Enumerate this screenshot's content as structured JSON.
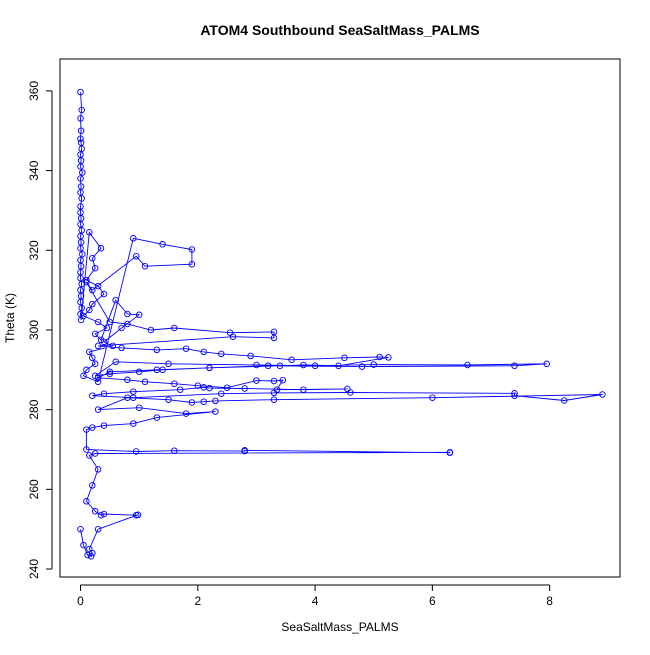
{
  "chart_data": {
    "type": "scatter",
    "title": "ATOM4 Southbound SeaSaltMass_PALMS",
    "xlabel": "SeaSaltMass_PALMS",
    "ylabel": "Theta (K)",
    "xlim": [
      -0.35,
      9.2
    ],
    "ylim": [
      238,
      368
    ],
    "x_ticks": [
      0,
      2,
      4,
      6,
      8
    ],
    "y_ticks": [
      240,
      260,
      280,
      300,
      320,
      340,
      360
    ],
    "grid": false,
    "legend": "none",
    "color": "#0000ff",
    "marker": "open-circle",
    "connected_by_lines": true,
    "series": [
      {
        "x": [
          0.0,
          0.02,
          0.0,
          0.01,
          0.0,
          0.01,
          0.02,
          0.0,
          0.01,
          0.0,
          0.03,
          0.0,
          0.01,
          0.0,
          0.02,
          0.0,
          0.0,
          0.01,
          0.0,
          0.02,
          0.0,
          0.01,
          0.0,
          0.03,
          0.0,
          0.01,
          0.0,
          0.0,
          0.02,
          0.0,
          0.01,
          0.0,
          0.02,
          0.0,
          0.01,
          0.15,
          0.35,
          0.2,
          0.25,
          0.1,
          0.3,
          0.4,
          0.2,
          0.15,
          0.05,
          0.3,
          0.45,
          0.25,
          0.35,
          0.6,
          0.8,
          1.0,
          0.7,
          0.4,
          0.55,
          0.15,
          0.2,
          0.25,
          0.1,
          0.05,
          0.3,
          0.9,
          1.4,
          1.9,
          1.9,
          1.1,
          0.95,
          0.2,
          0.1,
          0.5,
          0.8,
          1.2,
          1.6,
          2.55,
          3.3,
          3.3,
          2.6,
          0.3,
          0.7,
          1.3,
          1.8,
          2.1,
          2.4,
          2.9,
          3.6,
          4.5,
          5.1,
          5.25,
          4.4,
          3.8,
          3.4,
          2.2,
          1.4,
          1.0,
          0.5,
          0.25,
          0.6,
          1.5,
          3.0,
          4.0,
          5.0,
          6.6,
          7.95,
          7.4,
          4.8,
          3.2,
          2.2,
          1.3,
          0.5,
          0.3,
          0.8,
          1.1,
          1.6,
          2.0,
          2.5,
          3.0,
          3.3,
          3.45,
          3.35,
          4.55,
          3.8,
          2.8,
          2.2,
          2.1,
          1.7,
          0.9,
          0.4,
          0.2,
          0.9,
          2.4,
          3.3,
          4.6,
          7.4,
          7.4,
          8.25,
          8.9,
          6.0,
          3.3,
          2.3,
          2.1,
          1.9,
          1.5,
          0.8,
          0.3,
          1.0,
          1.8,
          2.3,
          1.3,
          0.9,
          0.4,
          0.2,
          0.1,
          0.1,
          0.95,
          1.6,
          2.8,
          2.8,
          6.3,
          6.3,
          0.25,
          0.15,
          0.3,
          0.2,
          0.1,
          0.25,
          0.35,
          0.4,
          0.95,
          0.98,
          0.3,
          0.15,
          0.2,
          0.18,
          0.12,
          0.05,
          0.0
        ],
        "y": [
          359.7,
          355.2,
          353.1,
          350.0,
          348.0,
          347.0,
          345.5,
          344.0,
          342.5,
          341.0,
          339.5,
          338.0,
          336.0,
          334.5,
          333.0,
          331.0,
          329.5,
          328.0,
          326.5,
          325.0,
          323.5,
          322.0,
          320.5,
          319.0,
          317.5,
          316.0,
          314.5,
          313.0,
          311.5,
          310.0,
          308.5,
          307.0,
          305.5,
          304.0,
          302.5,
          324.5,
          320.5,
          318.0,
          315.5,
          312.5,
          311.0,
          309.0,
          306.5,
          305.0,
          303.5,
          302.0,
          300.5,
          299.0,
          297.5,
          307.5,
          304.0,
          303.8,
          300.5,
          297.0,
          296.0,
          294.5,
          293.0,
          291.5,
          290.0,
          288.5,
          287.0,
          323.0,
          321.5,
          320.2,
          316.5,
          316.0,
          318.5,
          310.0,
          312.0,
          302.0,
          301.5,
          300.0,
          300.5,
          299.3,
          299.5,
          298.0,
          298.3,
          296.0,
          295.5,
          295.0,
          295.3,
          294.5,
          294.0,
          293.5,
          292.5,
          293.0,
          293.2,
          293.1,
          291.0,
          291.2,
          291.0,
          290.5,
          290.0,
          289.5,
          289.0,
          288.5,
          292.0,
          291.5,
          291.2,
          291.0,
          291.3,
          291.2,
          291.5,
          291.0,
          290.8,
          291.0,
          290.5,
          290.0,
          289.5,
          288.0,
          287.5,
          287.0,
          286.5,
          286.0,
          285.5,
          287.3,
          287.2,
          287.4,
          285.0,
          285.2,
          285.0,
          285.3,
          285.4,
          285.6,
          285.0,
          284.5,
          284.0,
          283.5,
          283.0,
          284.0,
          284.2,
          284.3,
          284.1,
          283.5,
          282.3,
          283.8,
          283.0,
          282.5,
          282.2,
          282.0,
          281.8,
          282.5,
          283.0,
          280.0,
          280.5,
          279.0,
          279.5,
          278.0,
          276.5,
          276.0,
          275.5,
          275.0,
          270.0,
          269.5,
          269.7,
          269.6,
          269.8,
          269.2,
          269.3,
          269.0,
          268.5,
          265.0,
          261.0,
          257.0,
          254.5,
          253.5,
          253.8,
          253.5,
          253.6,
          250.0,
          245.0,
          244.0,
          243.2,
          243.5,
          246.0,
          250.0
        ]
      }
    ]
  }
}
